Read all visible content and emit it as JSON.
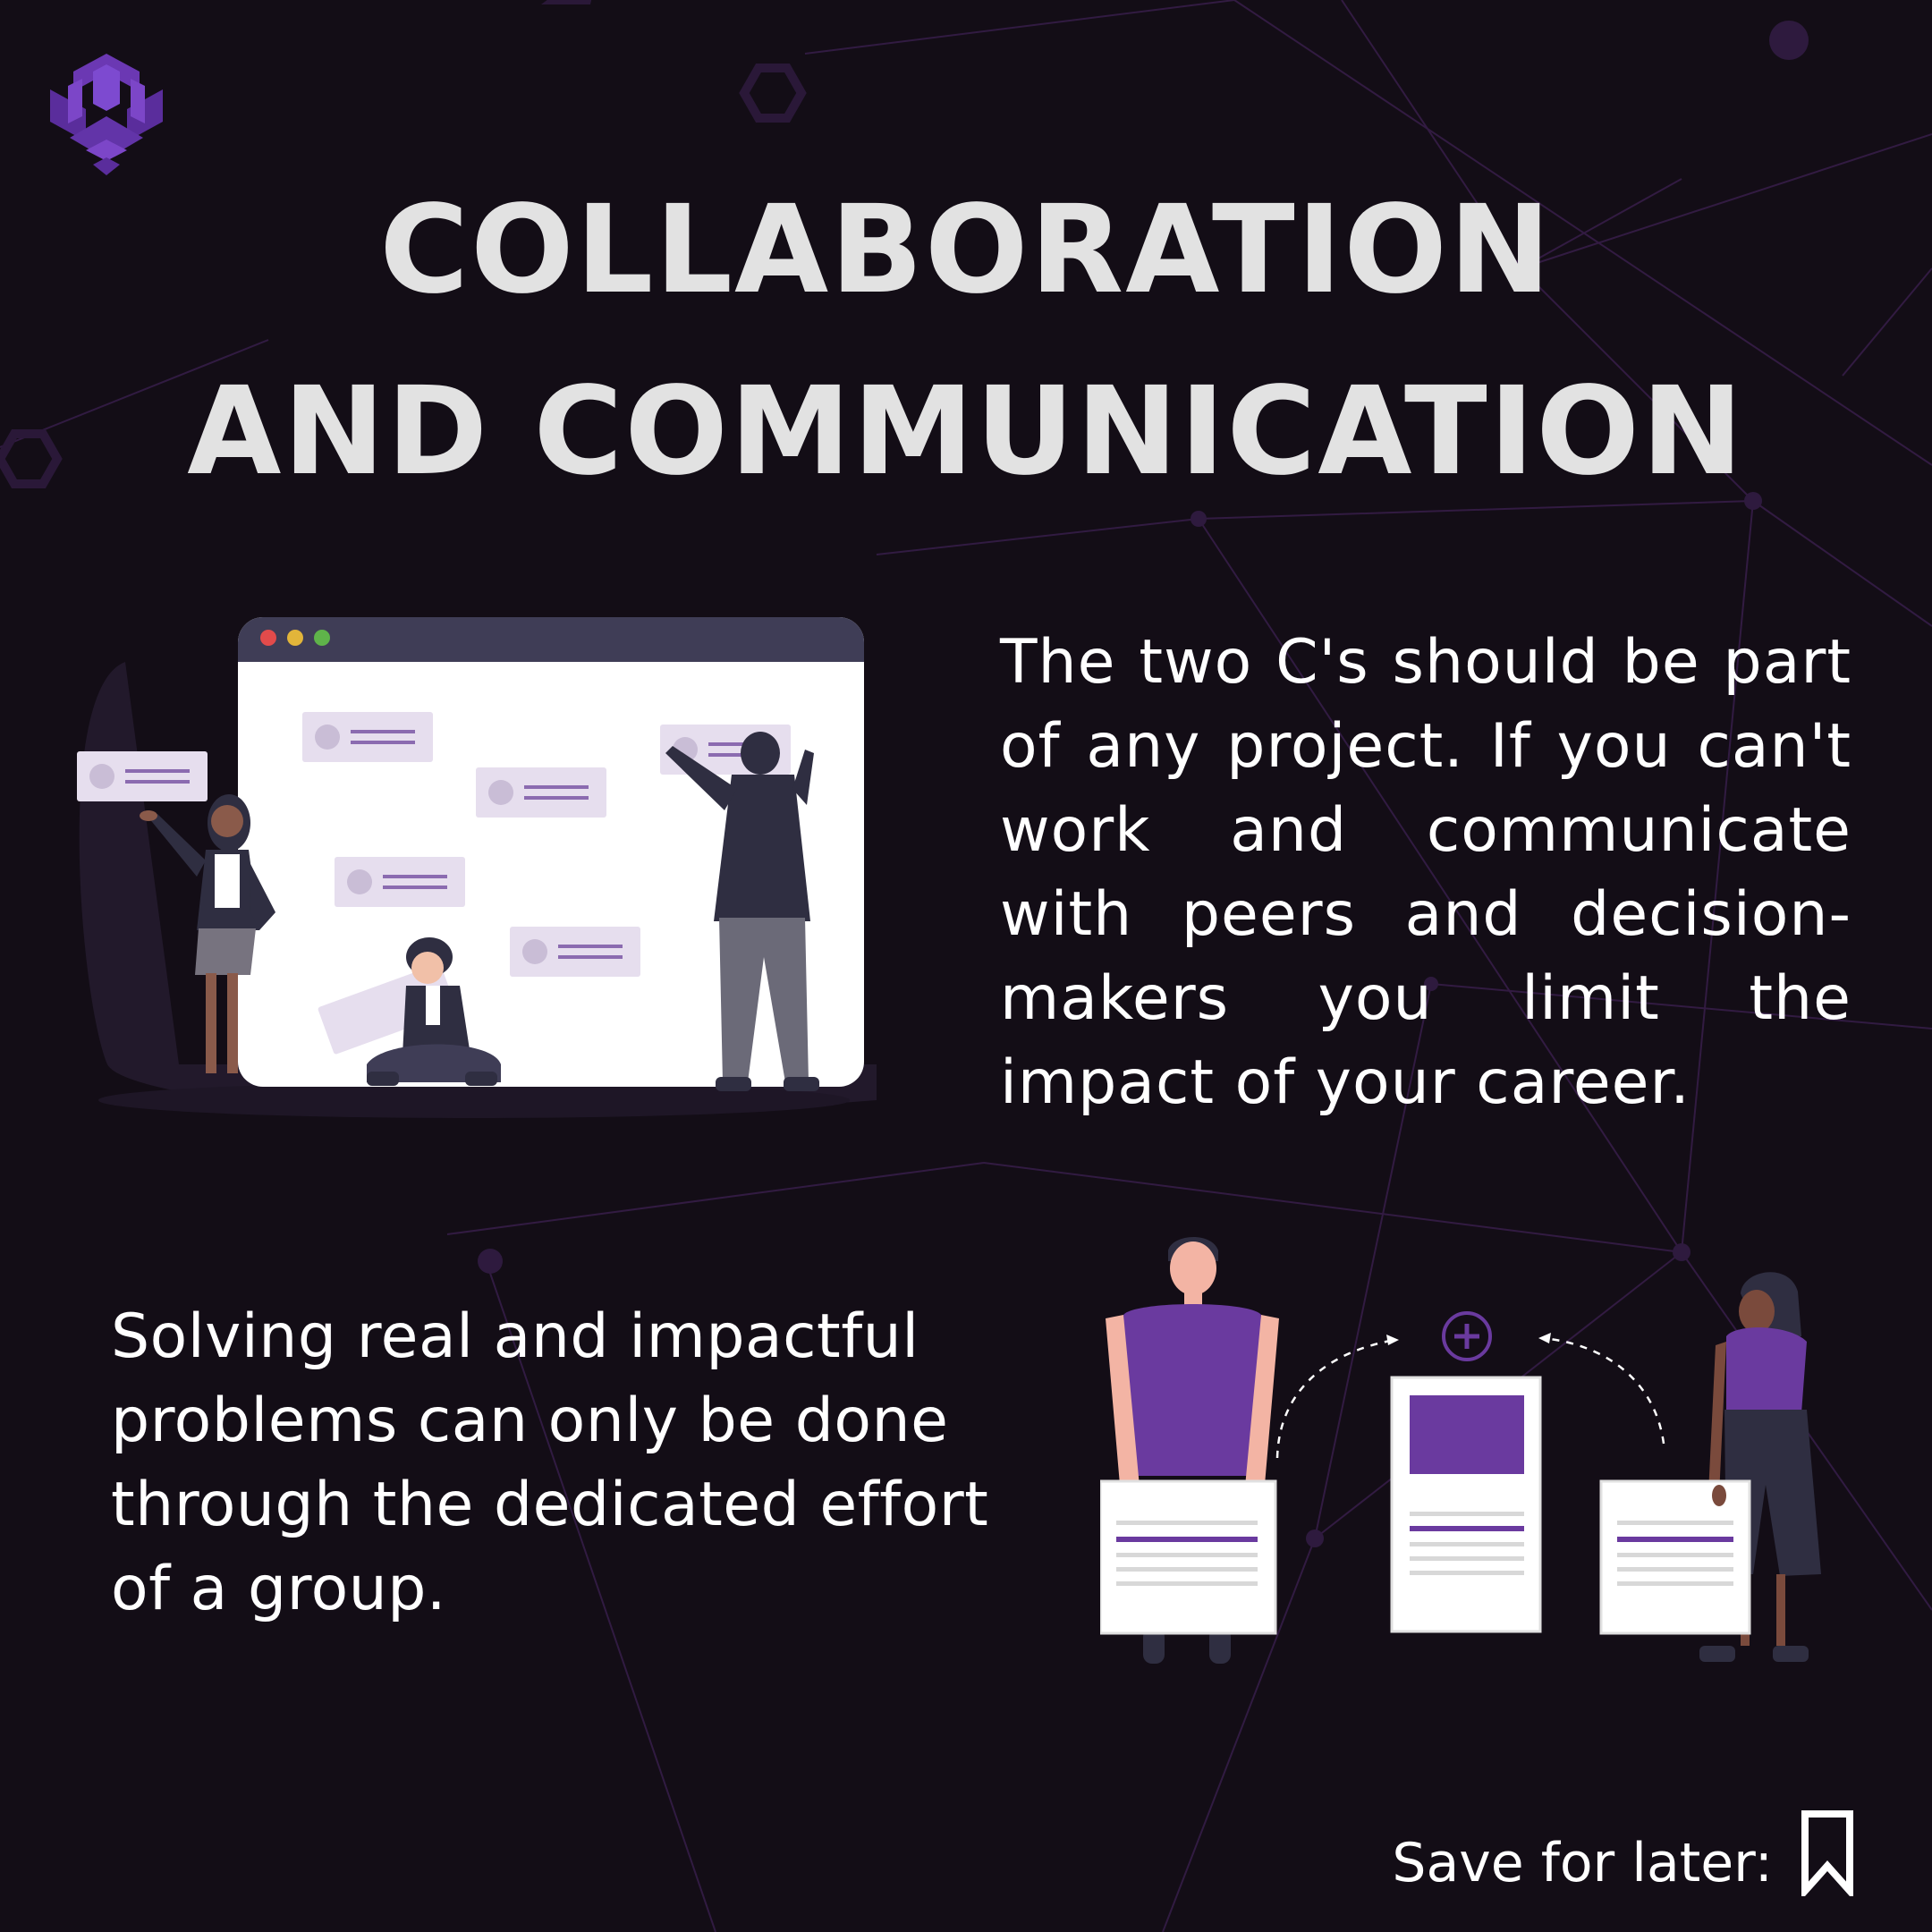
{
  "title": {
    "line1": "COLLABORATION",
    "line2": "AND COMMUNICATION"
  },
  "paragraphs": {
    "right": "The two C's should be part of any project. If  you can't work and communicate with peers and decision-makers you limit the impact of your career.",
    "left": "Solving real and impactful problems can only be done through the dedicated effort of a group."
  },
  "footer": {
    "save_label": "Save for later:"
  },
  "colors": {
    "background": "#130d16",
    "accent": "#6a3a9f",
    "title": "#e2e2e2",
    "card": "#e8e0ee"
  },
  "icons": {
    "logo": "cube-logo-icon",
    "bookmark": "bookmark-icon",
    "plus": "plus-circle-icon"
  }
}
